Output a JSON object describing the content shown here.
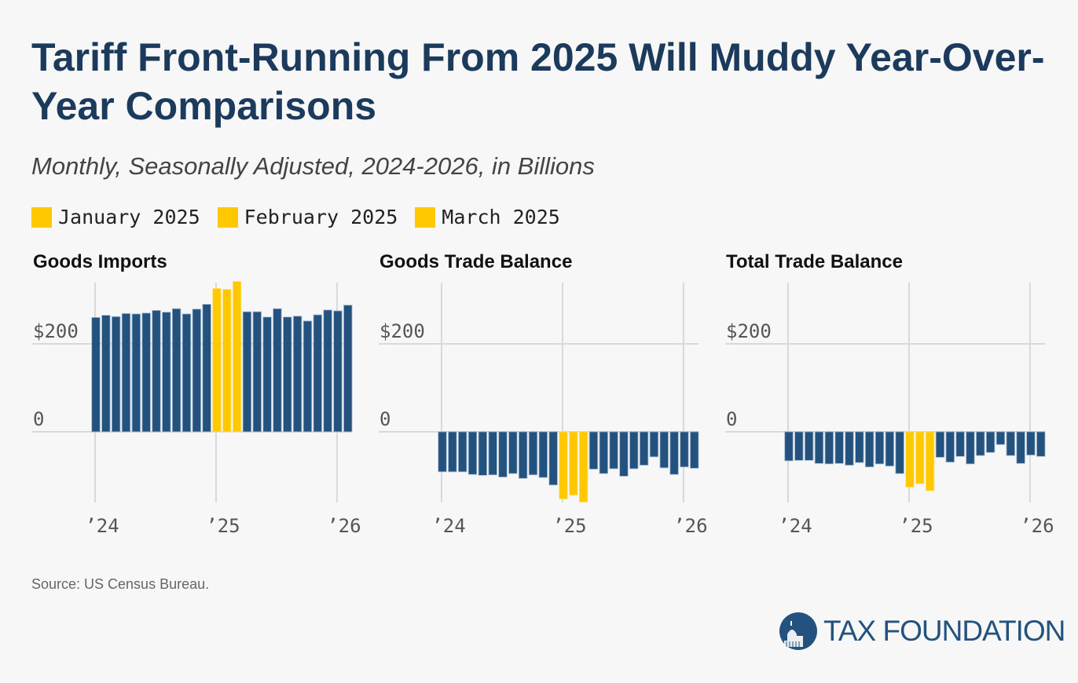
{
  "title": "Tariff Front-Running From 2025 Will Muddy Year-Over-Year Comparisons",
  "subtitle": "Monthly, Seasonally Adjusted, 2024-2026, in Billions",
  "legend": [
    "January 2025",
    "February 2025",
    "March 2025"
  ],
  "source": "Source: US Census Bureau.",
  "logo": "TAX FOUNDATION",
  "colors": {
    "base": "#24527f",
    "highlight": "#ffc800",
    "grid": "#d9d9d9"
  },
  "chart_data": [
    {
      "type": "bar",
      "title": "Goods Imports",
      "x_start": "Jan 2024",
      "highlight_indices": [
        12,
        13,
        14
      ],
      "yticks": [
        {
          "value": 0,
          "label": "0"
        },
        {
          "value": 200,
          "label": "$200"
        }
      ],
      "xticks": [
        {
          "index": 0,
          "label": "’24"
        },
        {
          "index": 12,
          "label": "’25"
        },
        {
          "index": 24,
          "label": "’26"
        }
      ],
      "values": [
        260,
        265,
        262,
        269,
        268,
        270,
        276,
        272,
        280,
        268,
        279,
        290,
        326,
        324,
        342,
        273,
        273,
        261,
        280,
        261,
        263,
        252,
        266,
        277,
        275,
        288
      ]
    },
    {
      "type": "bar",
      "title": "Goods Trade Balance",
      "x_start": "Jan 2024",
      "highlight_indices": [
        12,
        13,
        14
      ],
      "yticks": [
        {
          "value": 0,
          "label": "0"
        },
        {
          "value": 200,
          "label": "$200"
        }
      ],
      "xticks": [
        {
          "index": 0,
          "label": "’24"
        },
        {
          "index": 12,
          "label": "’25"
        },
        {
          "index": 24,
          "label": "’26"
        }
      ],
      "values": [
        -91,
        -91,
        -91,
        -97,
        -99,
        -98,
        -103,
        -95,
        -106,
        -98,
        -104,
        -121,
        -153,
        -144,
        -160,
        -85,
        -95,
        -84,
        -101,
        -84,
        -76,
        -57,
        -82,
        -97,
        -80,
        -83
      ]
    },
    {
      "type": "bar",
      "title": "Total Trade Balance",
      "x_start": "Jan 2024",
      "highlight_indices": [
        12,
        13,
        14
      ],
      "yticks": [
        {
          "value": 0,
          "label": "0"
        },
        {
          "value": 200,
          "label": "$200"
        }
      ],
      "xticks": [
        {
          "index": 0,
          "label": "’24"
        },
        {
          "index": 12,
          "label": "’25"
        },
        {
          "index": 24,
          "label": "’26"
        }
      ],
      "values": [
        -66,
        -65,
        -65,
        -72,
        -73,
        -72,
        -76,
        -70,
        -80,
        -73,
        -78,
        -95,
        -126,
        -118,
        -134,
        -58,
        -69,
        -56,
        -73,
        -54,
        -47,
        -29,
        -54,
        -72,
        -53,
        -56
      ]
    }
  ]
}
